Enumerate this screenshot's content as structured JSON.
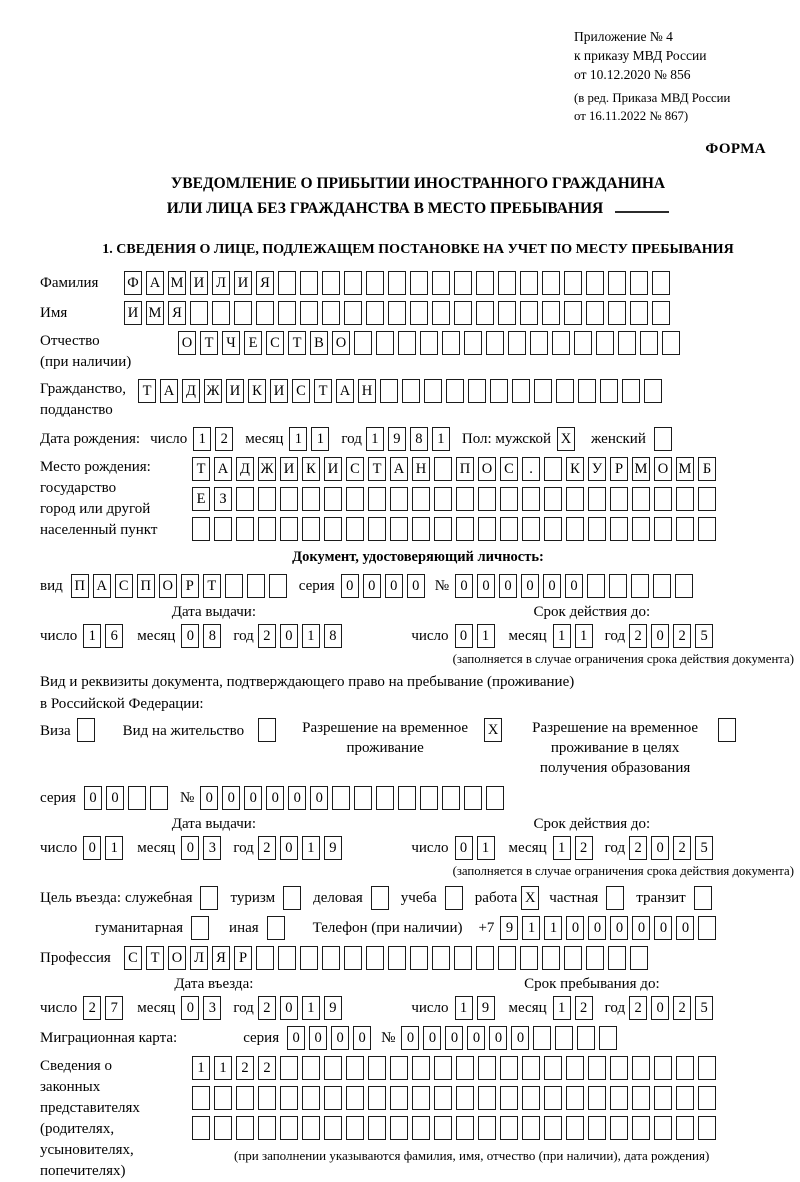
{
  "header": {
    "appendix": [
      "Приложение № 4",
      "к приказу МВД России",
      "от 10.12.2020 № 856"
    ],
    "edition": [
      "(в ред. Приказа МВД России",
      "от 16.11.2022 № 867)"
    ],
    "form_label": "ФОРМА"
  },
  "title": {
    "line1": "УВЕДОМЛЕНИЕ О ПРИБЫТИИ ИНОСТРАННОГО ГРАЖДАНИНА",
    "line2": "ИЛИ ЛИЦА БЕЗ ГРАЖДАНСТВА В МЕСТО ПРЕБЫВАНИЯ"
  },
  "section": {
    "heading": "1. СВЕДЕНИЯ О ЛИЦЕ, ПОДЛЕЖАЩЕМ ПОСТАНОВКЕ НА УЧЕТ ПО МЕСТУ ПРЕБЫВАНИЯ"
  },
  "labels": {
    "surname": "Фамилия",
    "given_name": "Имя",
    "patronymic1": "Отчество",
    "patronymic2": "(при наличии)",
    "citizenship1": "Гражданство,",
    "citizenship2": "подданство",
    "birthdate": "Дата рождения:",
    "day": "число",
    "month": "месяц",
    "year": "год",
    "sex_male": "Пол: мужской",
    "sex_female": "женский",
    "birthplace1": "Место рождения:",
    "birthplace2": "государство",
    "birthplace3": "город или другой",
    "birthplace4": "населенный пункт",
    "doc_heading": "Документ, удостоверяющий личность:",
    "doc_type": "вид",
    "series": "серия",
    "number_sign": "№",
    "issue_date": "Дата выдачи:",
    "valid_until": "Срок действия до:",
    "valid_note": "(заполняется в случае ограничения срока действия документа)",
    "residence_line1": "Вид и реквизиты документа, подтверждающего право на пребывание (проживание)",
    "residence_line2": "в Российской Федерации:",
    "visa": "Виза",
    "residence_permit": "Вид на жительство",
    "temp_permit1": "Разрешение на временное",
    "temp_permit2": "проживание",
    "edu_permit1": "Разрешение на временное",
    "edu_permit2": "проживание в целях",
    "edu_permit3": "получения образования",
    "purpose": "Цель въезда:",
    "purpose_official": "служебная",
    "purpose_tourism": "туризм",
    "purpose_business": "деловая",
    "purpose_study": "учеба",
    "purpose_work": "работа",
    "purpose_private": "частная",
    "purpose_transit": "транзит",
    "purpose_humanitarian": "гуманитарная",
    "purpose_other": "иная",
    "phone": "Телефон (при наличии)",
    "phone_prefix": "+7",
    "profession": "Профессия",
    "entry_date": "Дата въезда:",
    "stay_until": "Срок пребывания до:",
    "migration_card": "Миграционная карта:",
    "guardians1": "Сведения о",
    "guardians2": "законных",
    "guardians3": "представителях",
    "guardians4": "(родителях,",
    "guardians5": "усыновителях,",
    "guardians6": "попечителях)",
    "guardians_note": "(при заполнении указываются фамилия, имя, отчество (при наличии), дата рождения)"
  },
  "cells": {
    "surname": [
      "Ф",
      "А",
      "М",
      "И",
      "Л",
      "И",
      "Я",
      "",
      "",
      "",
      "",
      "",
      "",
      "",
      "",
      "",
      "",
      "",
      "",
      "",
      "",
      "",
      "",
      "",
      ""
    ],
    "given_name": [
      "И",
      "М",
      "Я",
      "",
      "",
      "",
      "",
      "",
      "",
      "",
      "",
      "",
      "",
      "",
      "",
      "",
      "",
      "",
      "",
      "",
      "",
      "",
      "",
      "",
      ""
    ],
    "patronymic": [
      "О",
      "Т",
      "Ч",
      "Е",
      "С",
      "Т",
      "В",
      "О",
      "",
      "",
      "",
      "",
      "",
      "",
      "",
      "",
      "",
      "",
      "",
      "",
      "",
      "",
      ""
    ],
    "citizenship": [
      "Т",
      "А",
      "Д",
      "Ж",
      "И",
      "К",
      "И",
      "С",
      "Т",
      "А",
      "Н",
      "",
      "",
      "",
      "",
      "",
      "",
      "",
      "",
      "",
      "",
      "",
      "",
      ""
    ],
    "birth_day": [
      "1",
      "2"
    ],
    "birth_month": [
      "1",
      "1"
    ],
    "birth_year": [
      "1",
      "9",
      "8",
      "1"
    ],
    "sex_male": [
      "X"
    ],
    "sex_female": [
      ""
    ],
    "birthplace_r1": [
      "Т",
      "А",
      "Д",
      "Ж",
      "И",
      "К",
      "И",
      "С",
      "Т",
      "А",
      "Н",
      "",
      "П",
      "О",
      "С",
      ".",
      "",
      "К",
      "У",
      "Р",
      "М",
      "О",
      "М",
      "Б"
    ],
    "birthplace_r2": [
      "Е",
      "З",
      "",
      "",
      "",
      "",
      "",
      "",
      "",
      "",
      "",
      "",
      "",
      "",
      "",
      "",
      "",
      "",
      "",
      "",
      "",
      "",
      "",
      ""
    ],
    "birthplace_r3": [
      "",
      "",
      "",
      "",
      "",
      "",
      "",
      "",
      "",
      "",
      "",
      "",
      "",
      "",
      "",
      "",
      "",
      "",
      "",
      "",
      "",
      "",
      "",
      ""
    ],
    "doc_type": [
      "П",
      "А",
      "С",
      "П",
      "О",
      "Р",
      "Т",
      "",
      "",
      ""
    ],
    "doc_series": [
      "0",
      "0",
      "0",
      "0"
    ],
    "doc_number": [
      "0",
      "0",
      "0",
      "0",
      "0",
      "0",
      "",
      "",
      "",
      "",
      ""
    ],
    "doc_issue_day": [
      "1",
      "6"
    ],
    "doc_issue_month": [
      "0",
      "8"
    ],
    "doc_issue_year": [
      "2",
      "0",
      "1",
      "8"
    ],
    "doc_expiry_day": [
      "0",
      "1"
    ],
    "doc_expiry_month": [
      "1",
      "1"
    ],
    "doc_expiry_year": [
      "2",
      "0",
      "2",
      "5"
    ],
    "visa": [
      ""
    ],
    "residence_permit": [
      ""
    ],
    "temp_permit": [
      "X"
    ],
    "edu_permit": [
      ""
    ],
    "permit_series": [
      "0",
      "0",
      "",
      ""
    ],
    "permit_number": [
      "0",
      "0",
      "0",
      "0",
      "0",
      "0",
      "",
      "",
      "",
      "",
      "",
      "",
      "",
      ""
    ],
    "permit_issue_day": [
      "0",
      "1"
    ],
    "permit_issue_month": [
      "0",
      "3"
    ],
    "permit_issue_year": [
      "2",
      "0",
      "1",
      "9"
    ],
    "permit_expiry_day": [
      "0",
      "1"
    ],
    "permit_expiry_month": [
      "1",
      "2"
    ],
    "permit_expiry_year": [
      "2",
      "0",
      "2",
      "5"
    ],
    "purpose_official": [
      ""
    ],
    "purpose_tourism": [
      ""
    ],
    "purpose_business": [
      ""
    ],
    "purpose_study": [
      ""
    ],
    "purpose_work": [
      "X"
    ],
    "purpose_private": [
      ""
    ],
    "purpose_transit": [
      ""
    ],
    "purpose_humanitarian": [
      ""
    ],
    "purpose_other": [
      ""
    ],
    "phone": [
      "9",
      "1",
      "1",
      "0",
      "0",
      "0",
      "0",
      "0",
      "0",
      ""
    ],
    "profession": [
      "С",
      "Т",
      "О",
      "Л",
      "Я",
      "Р",
      "",
      "",
      "",
      "",
      "",
      "",
      "",
      "",
      "",
      "",
      "",
      "",
      "",
      "",
      "",
      "",
      "",
      ""
    ],
    "entry_day": [
      "2",
      "7"
    ],
    "entry_month": [
      "0",
      "3"
    ],
    "entry_year": [
      "2",
      "0",
      "1",
      "9"
    ],
    "stay_day": [
      "1",
      "9"
    ],
    "stay_month": [
      "1",
      "2"
    ],
    "stay_year": [
      "2",
      "0",
      "2",
      "5"
    ],
    "migr_series": [
      "0",
      "0",
      "0",
      "0"
    ],
    "migr_number": [
      "0",
      "0",
      "0",
      "0",
      "0",
      "0",
      "",
      "",
      "",
      ""
    ],
    "guardians_r1": [
      "1",
      "1",
      "2",
      "2",
      "",
      "",
      "",
      "",
      "",
      "",
      "",
      "",
      "",
      "",
      "",
      "",
      "",
      "",
      "",
      "",
      "",
      "",
      "",
      ""
    ],
    "guardians_r2": [
      "",
      "",
      "",
      "",
      "",
      "",
      "",
      "",
      "",
      "",
      "",
      "",
      "",
      "",
      "",
      "",
      "",
      "",
      "",
      "",
      "",
      "",
      "",
      ""
    ],
    "guardians_r3": [
      "",
      "",
      "",
      "",
      "",
      "",
      "",
      "",
      "",
      "",
      "",
      "",
      "",
      "",
      "",
      "",
      "",
      "",
      "",
      "",
      "",
      "",
      "",
      ""
    ]
  }
}
